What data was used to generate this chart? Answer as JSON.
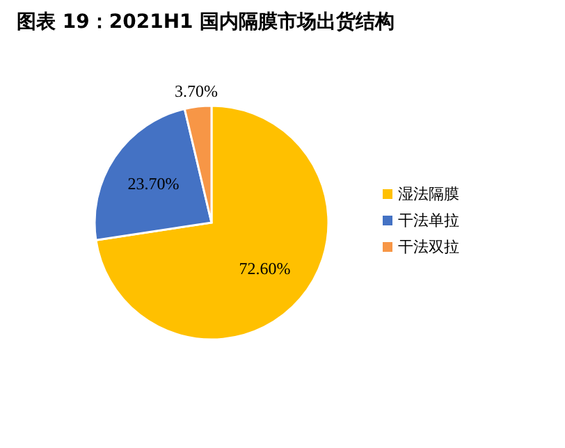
{
  "chart_data": {
    "type": "pie",
    "title": "图表 19：2021H1 国内隔膜市场出货结构",
    "categories": [
      "湿法隔膜",
      "干法单拉",
      "干法双拉"
    ],
    "values": [
      72.6,
      23.7,
      3.7
    ],
    "value_labels": [
      "72.60%",
      "23.70%",
      "3.70%"
    ],
    "colors": [
      "#ffc000",
      "#4472c4",
      "#f79646"
    ],
    "legend": "right"
  }
}
